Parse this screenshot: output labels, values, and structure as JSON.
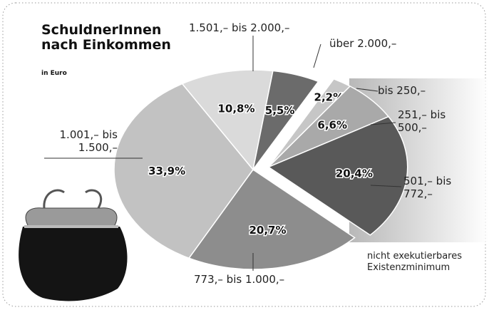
{
  "chart_data": {
    "type": "pie",
    "title": "SchuldnerInnen nach Einkommen",
    "subtitle": "in Euro",
    "categories": [
      "bis 250,–",
      "251,– bis 500,–",
      "501,– bis 772,–",
      "773,– bis 1.000,–",
      "1.001,– bis 1.500,–",
      "1.501,– bis 2.000,–",
      "über 2.000,–"
    ],
    "values": [
      2.2,
      6.6,
      20.4,
      20.7,
      33.9,
      10.8,
      5.5
    ],
    "value_labels": [
      "2,2%",
      "6,6%",
      "20,4%",
      "20,7%",
      "33,9%",
      "10,8%",
      "5,5%"
    ],
    "colors": [
      "#c6c6c6",
      "#a9a9a9",
      "#595959",
      "#8d8d8d",
      "#c2c2c2",
      "#dadada",
      "#6b6b6b"
    ],
    "annotation": "nicht exekutierbares Existenzminimum"
  }
}
